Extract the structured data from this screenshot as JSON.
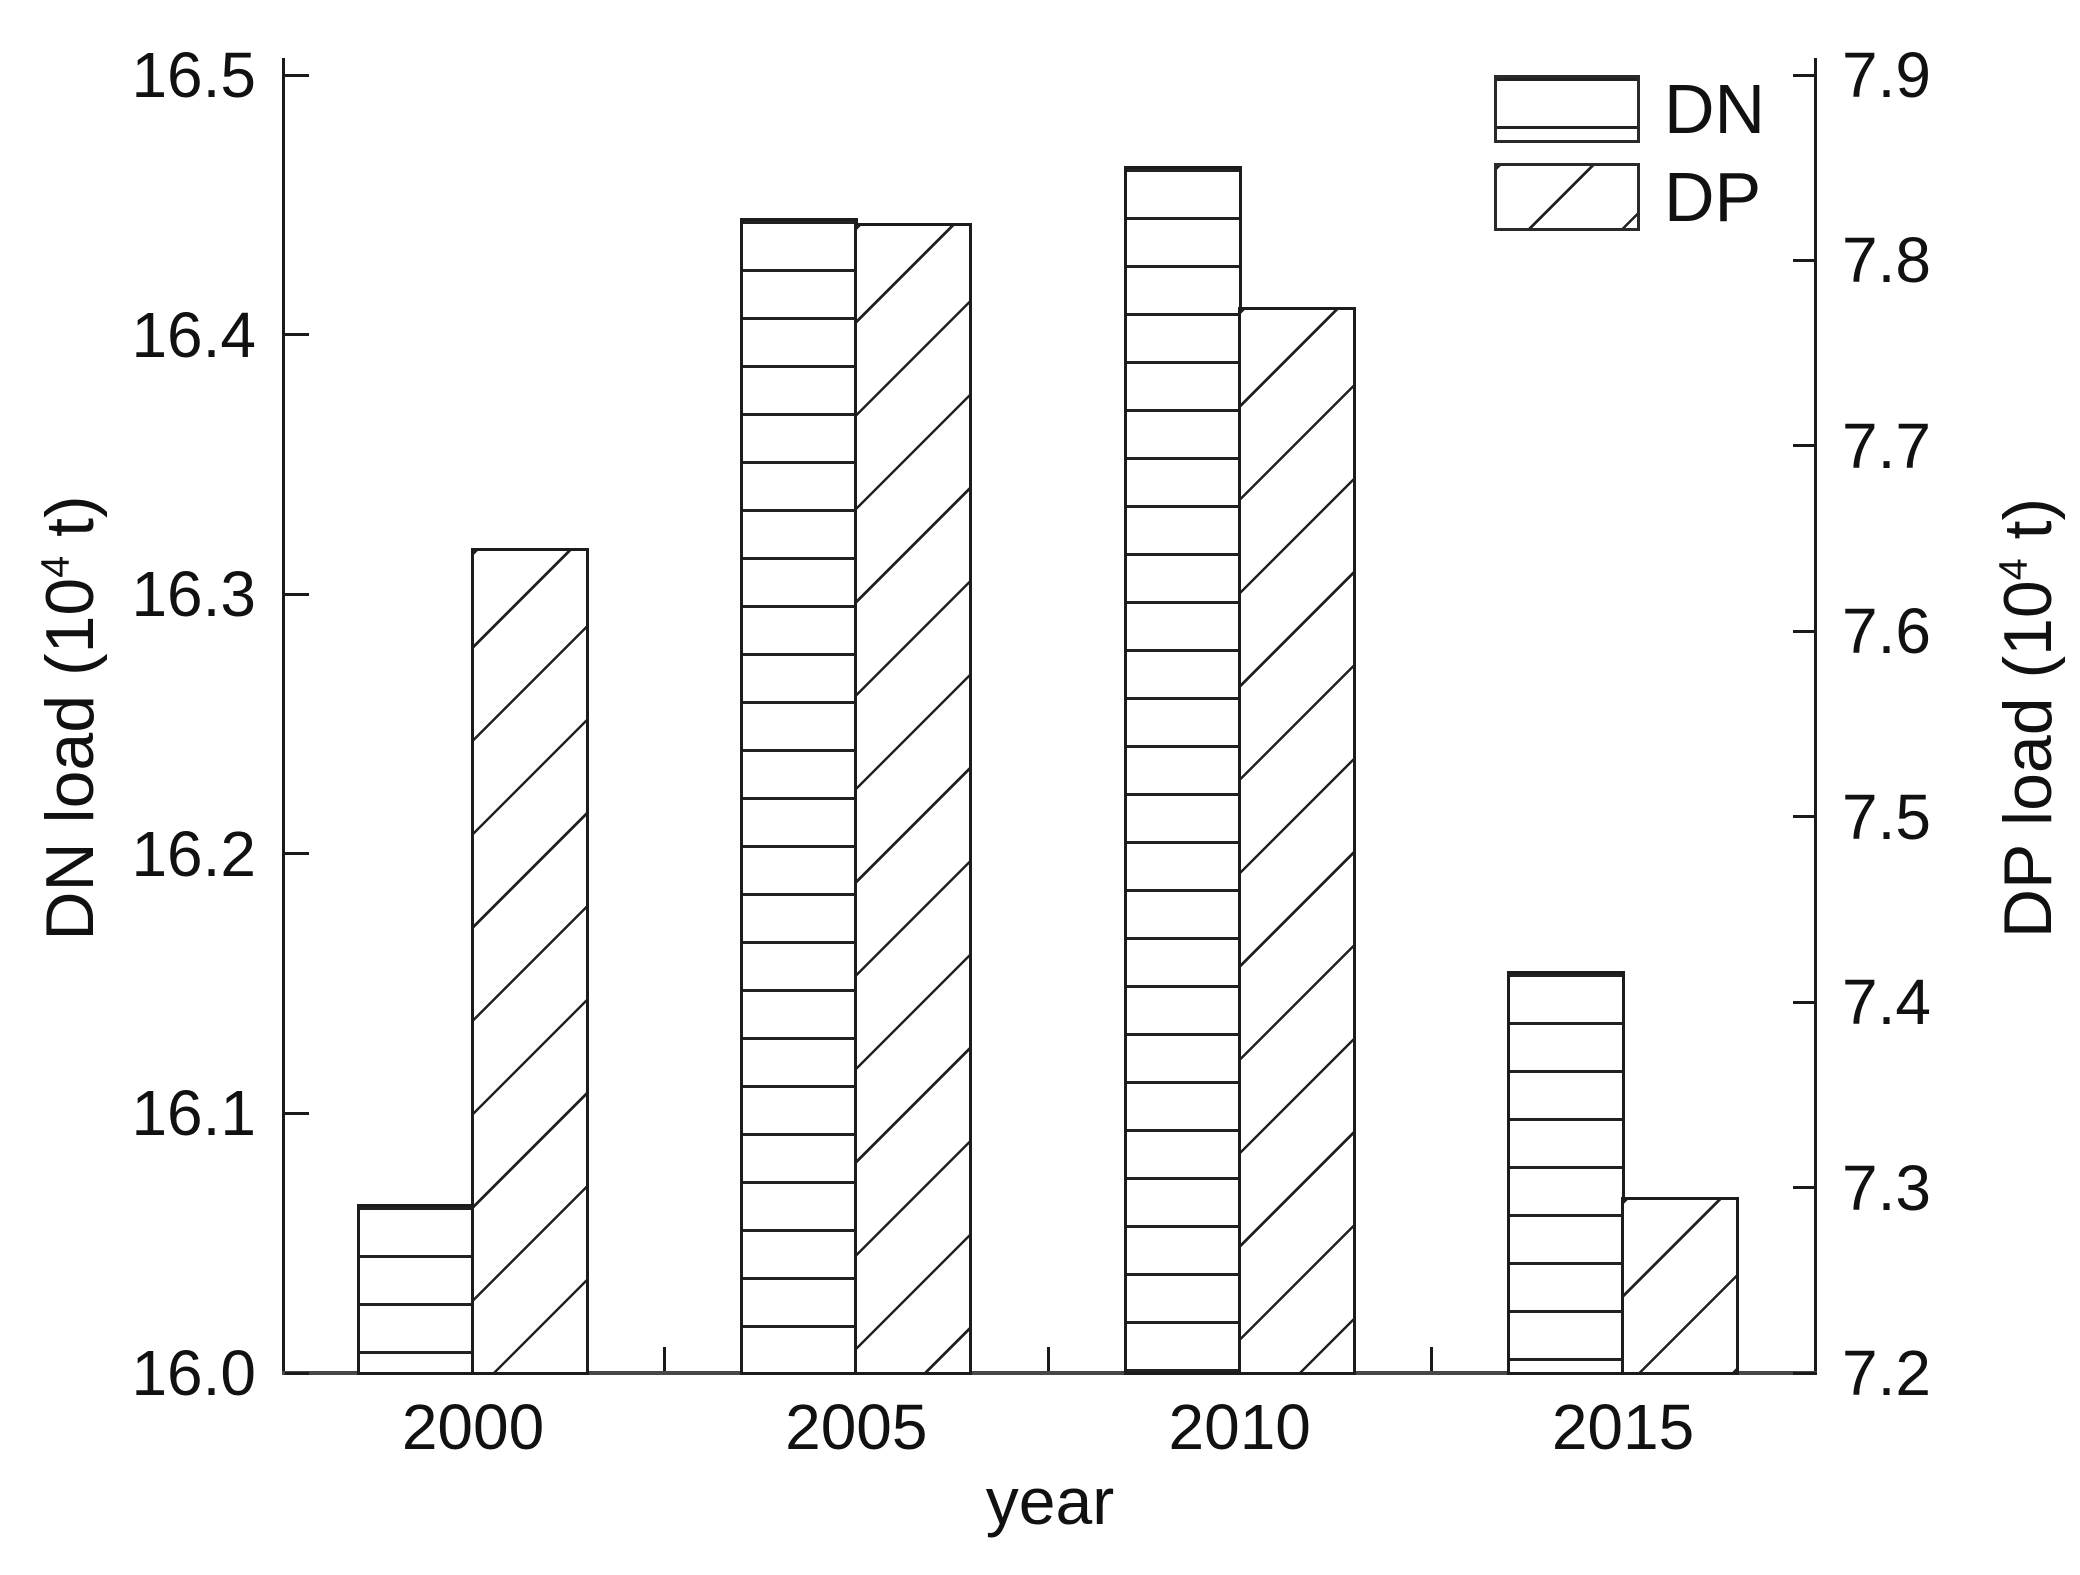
{
  "chart_data": {
    "type": "bar",
    "categories": [
      "2000",
      "2005",
      "2010",
      "2015"
    ],
    "series": [
      {
        "name": "DN",
        "axis": "left",
        "hatch": "horizontal",
        "values": [
          16.065,
          16.445,
          16.465,
          16.155
        ]
      },
      {
        "name": "DP",
        "axis": "right",
        "hatch": "diagonal",
        "values": [
          7.645,
          7.82,
          7.775,
          7.295
        ]
      }
    ],
    "axes": {
      "left": {
        "title_prefix": "DN load (10",
        "title_sup": "4",
        "title_suffix": " t)",
        "min": 16.0,
        "max": 16.5,
        "tick_step": 0.1,
        "tick_labels": [
          "16.0",
          "16.1",
          "16.2",
          "16.3",
          "16.4",
          "16.5"
        ]
      },
      "right": {
        "title_prefix": "DP load (10",
        "title_sup": "4",
        "title_suffix": " t)",
        "min": 7.2,
        "max": 7.9,
        "tick_step": 0.1,
        "tick_labels": [
          "7.2",
          "7.3",
          "7.4",
          "7.5",
          "7.6",
          "7.7",
          "7.8",
          "7.9"
        ]
      },
      "x": {
        "title": "year"
      }
    },
    "legend": {
      "position": "top-right",
      "items": [
        {
          "label": "DN",
          "hatch": "horizontal"
        },
        {
          "label": "DP",
          "hatch": "diagonal"
        }
      ]
    },
    "grid": false,
    "colors": {
      "background": "#ffffff",
      "axis": "#1a1a1a",
      "hatch": "#222222",
      "text": "#111111"
    }
  }
}
